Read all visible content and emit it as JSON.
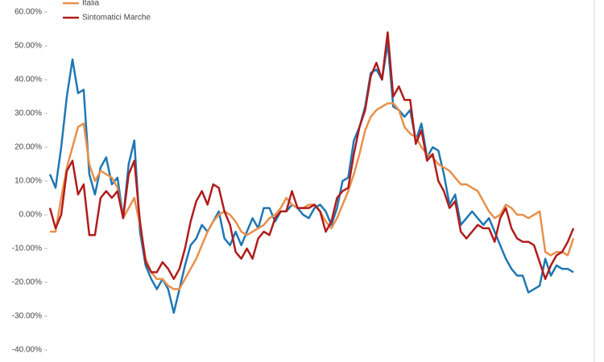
{
  "chart_data": {
    "type": "line",
    "categories": [
      null,
      null,
      null,
      null,
      null,
      null,
      null,
      null,
      null,
      null,
      null,
      null,
      null,
      null,
      null,
      null,
      null,
      null,
      null,
      null,
      null,
      null,
      null,
      null,
      null,
      null,
      null,
      null,
      null,
      null,
      null,
      null,
      null,
      null,
      null,
      null,
      null,
      null,
      null,
      null,
      null,
      null,
      null,
      null,
      null,
      null,
      null,
      null,
      null,
      null,
      null,
      null,
      null,
      null,
      null,
      null,
      null,
      null,
      null,
      null,
      null,
      null,
      null,
      null,
      null,
      null,
      null,
      null,
      null,
      null,
      null,
      null,
      null,
      null,
      null,
      null,
      null,
      null,
      null,
      null,
      null,
      null,
      null,
      null,
      null,
      null,
      null,
      null,
      null,
      null,
      null,
      null,
      null,
      null
    ],
    "series": [
      {
        "color": "#1f77b4",
        "values": [
          12,
          8,
          20,
          35,
          46,
          36,
          37,
          12,
          6,
          14,
          17,
          9,
          11,
          -1,
          15,
          22,
          -5,
          -15,
          -19,
          -22,
          -19,
          -22,
          -29,
          -22,
          -15,
          -9,
          -7,
          -3,
          -5,
          -2,
          1,
          -7,
          -9,
          -5,
          -9,
          -5,
          -1,
          -4,
          2,
          2,
          -2,
          1,
          1,
          3,
          2,
          0,
          -1,
          2,
          3,
          1,
          -3,
          2,
          10,
          11,
          22,
          26,
          32,
          42,
          43,
          40,
          51,
          32,
          31,
          29,
          31,
          22,
          27,
          17,
          20,
          19,
          12,
          3,
          6,
          -3,
          -1,
          1,
          -1,
          -3,
          -1,
          -5,
          -9,
          -13,
          -16,
          -18,
          -18,
          -23,
          -22,
          -21,
          -13,
          -18,
          -15,
          -16,
          -16,
          -17
        ]
      },
      {
        "name": "Italia",
        "color": "#e8904a",
        "values": [
          -5,
          -5,
          5,
          14,
          20,
          26,
          27,
          15,
          10,
          13,
          12,
          11,
          8,
          -1,
          2,
          5,
          -3,
          -13,
          -17,
          -19,
          -19,
          -21,
          -22,
          -22,
          -19,
          -16,
          -13,
          -9,
          -5,
          -2,
          0,
          1,
          0,
          -2,
          -5,
          -6,
          -5,
          -4,
          -3,
          -1,
          0,
          2,
          5,
          3,
          2,
          2,
          3,
          3,
          1,
          -2,
          -4,
          -1,
          3,
          7,
          12,
          18,
          25,
          29,
          31,
          32,
          33,
          33,
          31,
          26,
          24,
          23,
          20,
          18,
          17,
          15,
          14,
          13,
          11,
          9,
          9,
          8,
          7,
          4,
          1,
          -1,
          0,
          3,
          2,
          0,
          0,
          -1,
          0,
          1,
          -11,
          -12,
          -11,
          -11,
          -12,
          -7
        ]
      },
      {
        "name": "Sintomatici Marche",
        "color": "#b01c1c",
        "values": [
          2,
          -4,
          0,
          13,
          16,
          6,
          9,
          -6,
          -6,
          5,
          7,
          5,
          7,
          -1,
          12,
          16,
          -2,
          -14,
          -17,
          -17,
          -14,
          -16,
          -19,
          -16,
          -10,
          -2,
          4,
          7,
          3,
          9,
          8,
          1,
          -3,
          -11,
          -13,
          -10,
          -13,
          -7,
          -5,
          -6,
          -1,
          1,
          1,
          7,
          2,
          2,
          2,
          3,
          1,
          -5,
          -2,
          5,
          7,
          8,
          18,
          26,
          31,
          41,
          45,
          40,
          54,
          35,
          38,
          34,
          34,
          21,
          25,
          16,
          18,
          10,
          7,
          2,
          4,
          -5,
          -7,
          -5,
          -3,
          -4,
          -4,
          -8,
          -1,
          2,
          -4,
          -7,
          -8,
          -8,
          -9,
          -14,
          -19,
          -15,
          -12,
          -11,
          -8,
          -4
        ]
      }
    ],
    "ylim": [
      -40,
      60
    ],
    "yticks": [
      {
        "value": -40,
        "label": "-40.00%"
      },
      {
        "value": -30,
        "label": "-30.00%"
      },
      {
        "value": -20,
        "label": "-20.00%"
      },
      {
        "value": -10,
        "label": "-10.00%"
      },
      {
        "value": 0,
        "label": "0.00%"
      },
      {
        "value": 10,
        "label": "10.00%"
      },
      {
        "value": 20,
        "label": "20.00%"
      },
      {
        "value": 30,
        "label": "30.00%"
      },
      {
        "value": 40,
        "label": "40.00%"
      },
      {
        "value": 50,
        "label": "50.00%"
      },
      {
        "value": 60,
        "label": "60.00%"
      }
    ],
    "legend": "top-left"
  }
}
